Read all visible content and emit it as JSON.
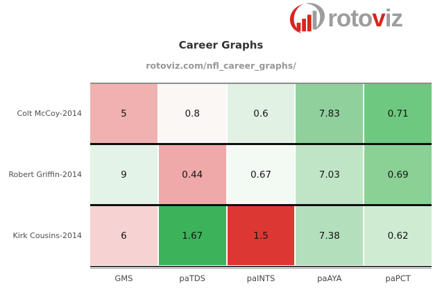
{
  "logo": {
    "icon": "rotoviz-barchart-swoosh-icon",
    "text_part1": "roto",
    "text_part2": "v",
    "text_part3": "iz",
    "color_gray": "#9d9d9d",
    "color_red": "#d9251d"
  },
  "header": {
    "title": "Career Graphs",
    "subtitle": "rotoviz.com/nfl_career_graphs/"
  },
  "chart_data": {
    "type": "heatmap",
    "columns": [
      "GMS",
      "paTDS",
      "paINTS",
      "paAYA",
      "paPCT"
    ],
    "rows": [
      {
        "label": "Colt McCoy-2014",
        "values": [
          "5",
          "0.8",
          "0.6",
          "7.83",
          "0.71"
        ],
        "colors": [
          "#f0b2b1",
          "#fbf7f5",
          "#e1f1e4",
          "#8fd09c",
          "#6ec87f"
        ]
      },
      {
        "label": "Robert Griffin-2014",
        "values": [
          "9",
          "0.44",
          "0.67",
          "7.03",
          "0.69"
        ],
        "colors": [
          "#e4f3e7",
          "#efa9a8",
          "#f3faf4",
          "#c0e5c6",
          "#8bd195"
        ]
      },
      {
        "label": "Kirk Cousins-2014",
        "values": [
          "6",
          "1.67",
          "1.5",
          "7.38",
          "0.62"
        ],
        "colors": [
          "#f6d3d2",
          "#3cb35b",
          "#dc3732",
          "#b4dfbc",
          "#cfecd3"
        ]
      }
    ],
    "palette": "diverging red-white-green",
    "legend": "none",
    "grid": "off",
    "border_top_color": "#8d8d8d",
    "row_separator_color": "#0e0e0e"
  }
}
